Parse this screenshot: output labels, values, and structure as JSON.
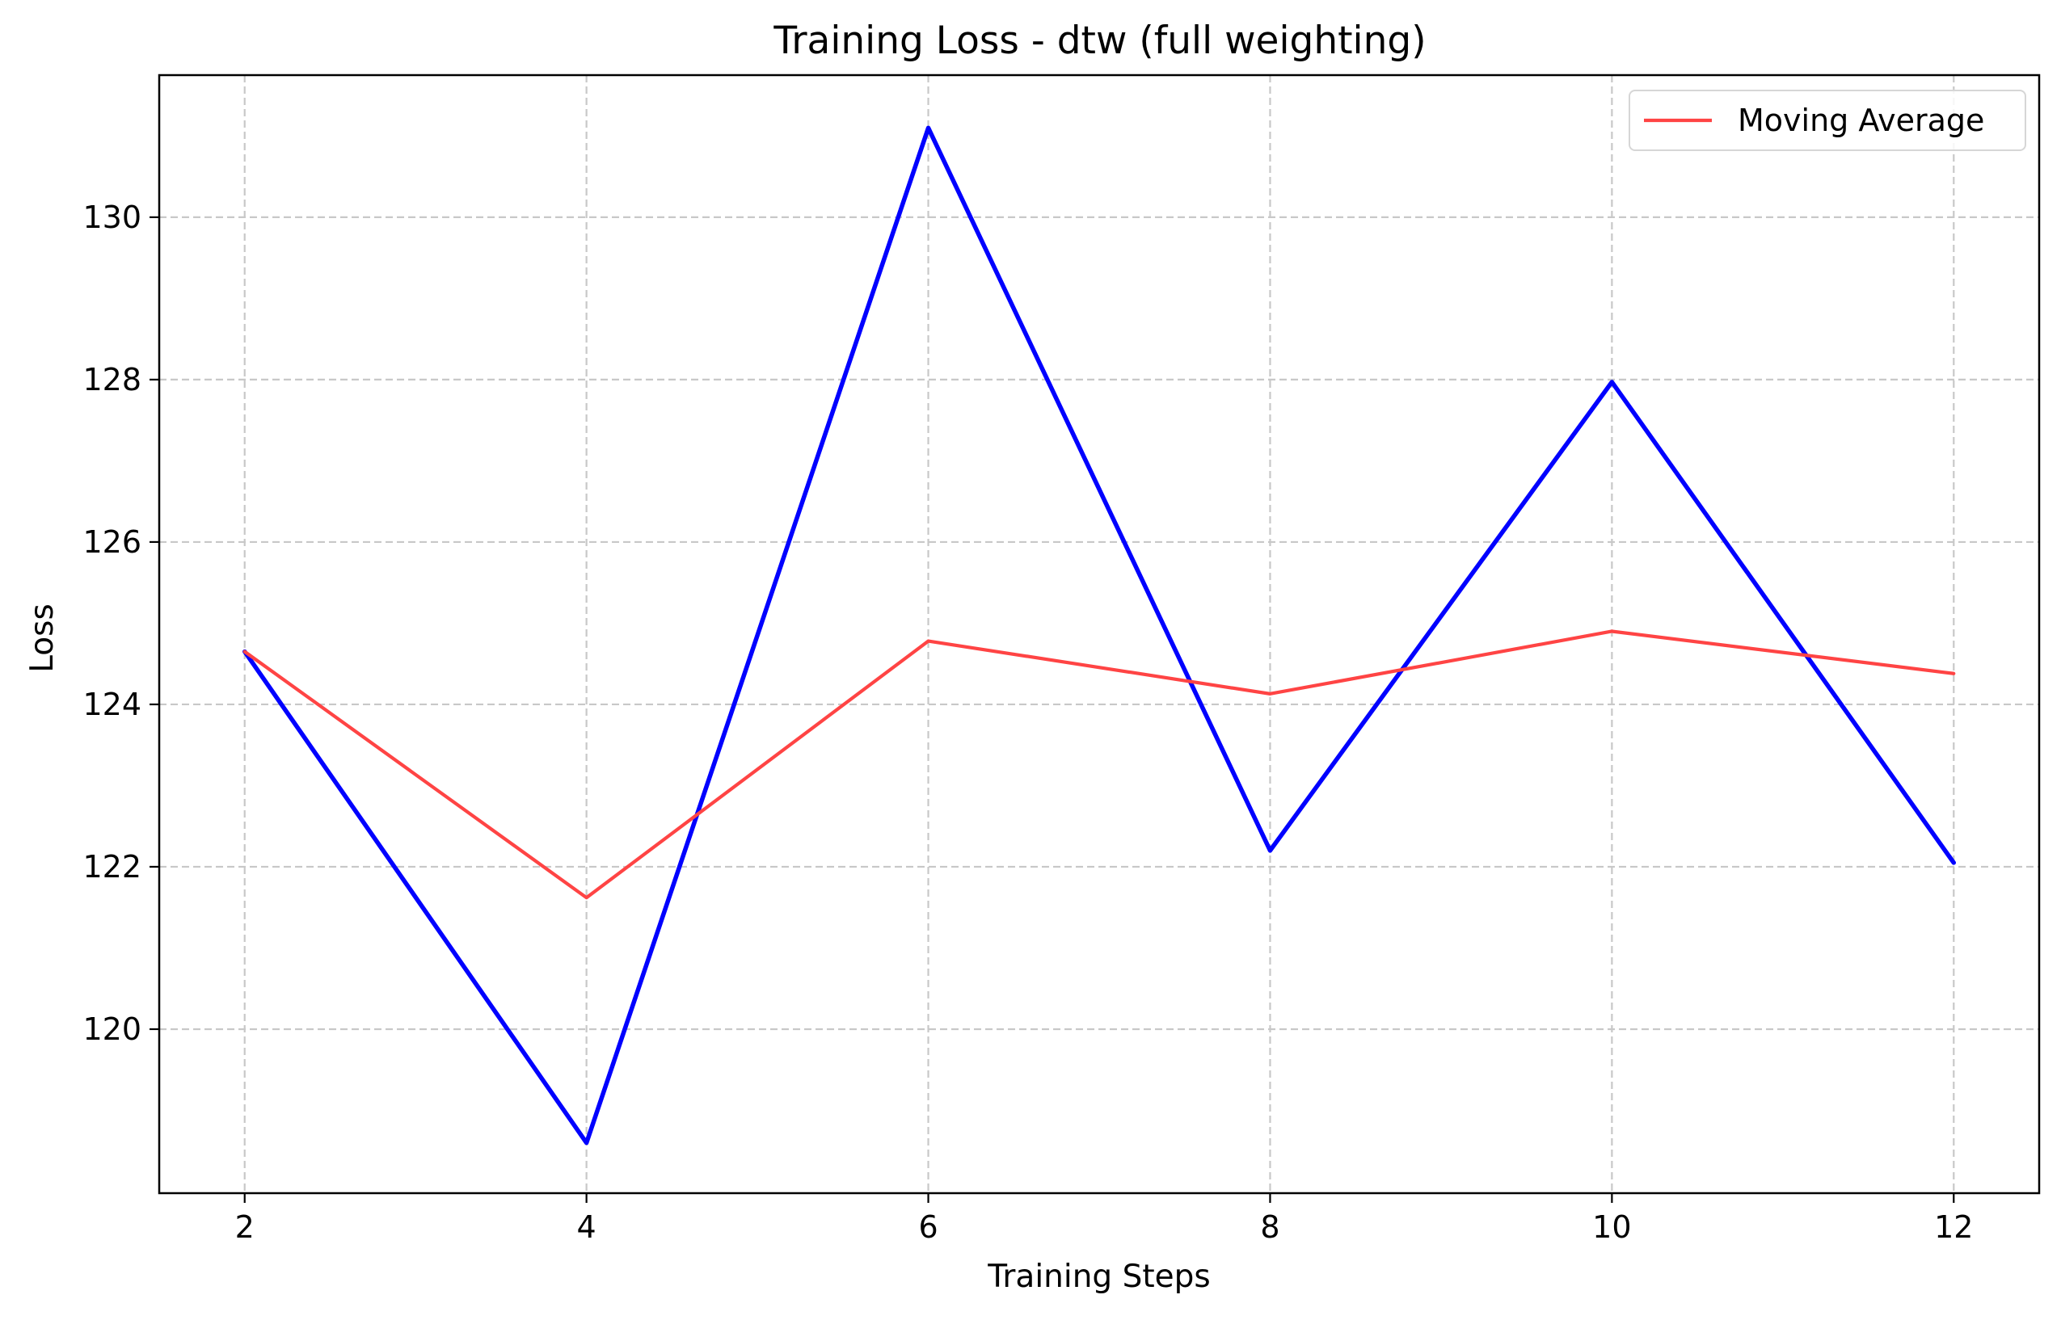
{
  "chart_data": {
    "type": "line",
    "title": "Training Loss - dtw (full weighting)",
    "xlabel": "Training Steps",
    "ylabel": "Loss",
    "x": [
      2,
      4,
      6,
      8,
      10,
      12
    ],
    "xlim": [
      1.5,
      12.5
    ],
    "ylim": [
      117.98,
      131.75
    ],
    "xticks": [
      2,
      4,
      6,
      8,
      10,
      12
    ],
    "yticks": [
      120,
      122,
      124,
      126,
      128,
      130
    ],
    "grid": true,
    "legend_position": "upper right",
    "series": [
      {
        "values": [
          124.65,
          118.6,
          131.1,
          122.2,
          127.97,
          122.05
        ],
        "color": "#0000ff",
        "in_legend": false
      },
      {
        "name": "Moving Average",
        "values": [
          124.65,
          121.62,
          124.78,
          124.13,
          124.9,
          124.38
        ],
        "color": "#ff4444",
        "in_legend": true
      }
    ]
  }
}
